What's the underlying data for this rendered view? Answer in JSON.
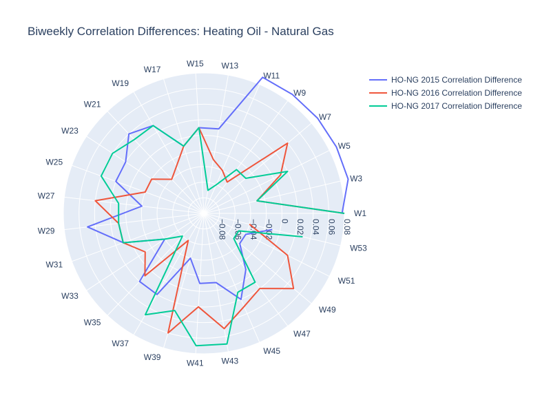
{
  "chart_data": {
    "type": "polar-line",
    "title": "Biweekly Correlation Differences: Heating Oil - Natural Gas",
    "angular_categories": [
      "W1",
      "W3",
      "W5",
      "W7",
      "W9",
      "W11",
      "W13",
      "W15",
      "W17",
      "W19",
      "W21",
      "W23",
      "W25",
      "W27",
      "W29",
      "W31",
      "W33",
      "W35",
      "W37",
      "W39",
      "W41",
      "W43",
      "W45",
      "W47",
      "W49",
      "W51",
      "W53"
    ],
    "radial_range": [
      -0.1,
      0.08
    ],
    "radial_ticks": [
      -0.08,
      -0.06,
      -0.04,
      -0.02,
      0,
      0.02,
      0.04,
      0.06,
      0.08
    ],
    "radial_tick_labels": [
      "−0.08",
      "−0.06",
      "−0.04",
      "−0.02",
      "0",
      "0.02",
      "0.04",
      "0.06",
      "0.08"
    ],
    "legend_position": "top-right",
    "series": [
      {
        "name": "HO-NG 2015 Correlation Difference",
        "color": "#636efa",
        "values": [
          0.077,
          0.09,
          0.09,
          0.09,
          0.09,
          0.09,
          0.01,
          0.01,
          -0.01,
          0.03,
          0.04,
          0.02,
          0.02,
          -0.02,
          0.05,
          0.01,
          -0.04,
          0.02,
          0.02,
          -0.04,
          -0.01,
          -0.01,
          0.02,
          -0.01,
          -0.04,
          -0.04,
          -0.01
        ]
      },
      {
        "name": "HO-NG 2016 Correlation Difference",
        "color": "#ef553b",
        "values": [
          0.08,
          -0.03,
          0.01,
          0.04,
          -0.05,
          -0.04,
          -0.03,
          0.01,
          -0.01,
          -0.03,
          -0.04,
          -0.02,
          -0.02,
          0.04,
          0.01,
          0.01,
          -0.01,
          0.01,
          -0.06,
          0.06,
          0.02,
          0.05,
          0.03,
          0.02,
          0.05,
          0.02,
          -0.04
        ]
      },
      {
        "name": "HO-NG 2017 Correlation Difference",
        "color": "#00cc96",
        "values": [
          0.08,
          -0.03,
          0.02,
          -0.03,
          -0.03,
          -0.06,
          -0.07,
          0.01,
          -0.01,
          0.03,
          0.03,
          0.04,
          0.04,
          0.01,
          0.01,
          0.01,
          -0.04,
          -0.06,
          0.05,
          0.03,
          0.07,
          0.07,
          0.01,
          0.01,
          -0.05,
          -0.05,
          0.03
        ]
      }
    ]
  }
}
